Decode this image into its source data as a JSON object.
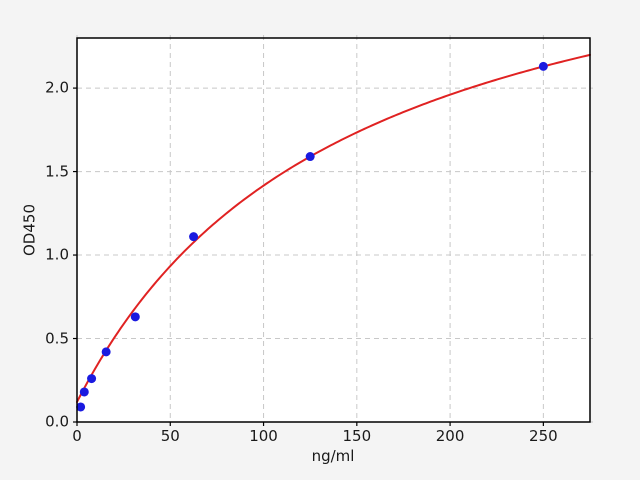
{
  "figure": {
    "background": "#f4f4f4",
    "plot_background": "#ffffff",
    "grid_color": "#c8c8c8",
    "spine_color": "#000000",
    "text_color": "#1a1a1a"
  },
  "chart_data": {
    "type": "scatter",
    "title": "",
    "xlabel": "ng/ml",
    "ylabel": "OD450",
    "xlim": [
      0,
      275
    ],
    "ylim": [
      0,
      2.3
    ],
    "xticks": [
      0,
      50,
      100,
      150,
      200,
      250
    ],
    "xtick_labels": [
      "0",
      "50",
      "100",
      "150",
      "200",
      "250"
    ],
    "yticks": [
      0,
      0.5,
      1.0,
      1.5,
      2.0
    ],
    "ytick_labels": [
      "0.0",
      "0.5",
      "1.0",
      "1.5",
      "2.0"
    ],
    "grid": true,
    "grid_style": "dashed",
    "legend": null,
    "series": [
      {
        "name": "standard-points",
        "marker": "circle",
        "marker_color": "#1a1ae0",
        "marker_size": 9,
        "points": [
          [
            1.953,
            0.09
          ],
          [
            3.906,
            0.18
          ],
          [
            7.813,
            0.26
          ],
          [
            15.625,
            0.42
          ],
          [
            31.25,
            0.63
          ],
          [
            62.5,
            1.11
          ],
          [
            125,
            1.59
          ],
          [
            250,
            2.13
          ]
        ]
      }
    ],
    "fit_curve": {
      "name": "standard-curve-fit",
      "color": "#e02222",
      "line_width": 2,
      "model": "y = c + a*x/(b+x)",
      "params": {
        "a": 3.175,
        "b": 145,
        "c": 0.12
      },
      "x_range": [
        0,
        275
      ]
    }
  }
}
